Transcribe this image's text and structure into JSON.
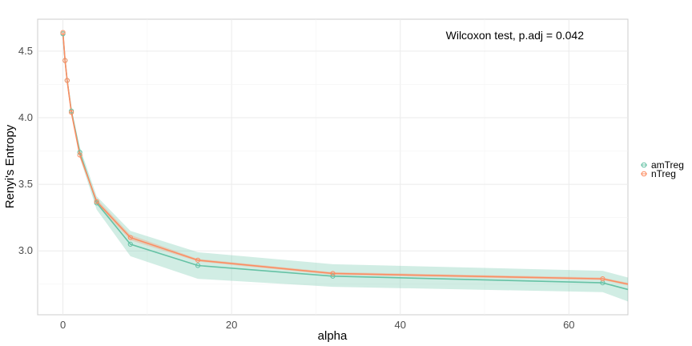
{
  "chart_data": {
    "type": "line",
    "xlabel": "alpha",
    "ylabel": "Renyi's Entropy",
    "annotation": "Wilcoxon test, p.adj = 0.042",
    "xlim": [
      -3,
      67
    ],
    "ylim": [
      2.52,
      4.74
    ],
    "x_ticks": [
      0,
      20,
      40,
      60
    ],
    "y_ticks": [
      3.0,
      3.5,
      4.0,
      4.5
    ],
    "x_tick_labels": [
      "0",
      "20",
      "40",
      "60"
    ],
    "y_tick_labels": [
      "3.0",
      "3.5",
      "4.0",
      "4.5"
    ],
    "grid": true,
    "legend_position": "right",
    "series": [
      {
        "name": "amTreg",
        "color": "#66c2a5",
        "x": [
          0,
          0.25,
          0.5,
          1,
          2,
          4,
          8,
          16,
          32,
          64,
          67
        ],
        "y": [
          4.63,
          4.43,
          4.28,
          4.05,
          3.74,
          3.36,
          3.05,
          2.89,
          2.81,
          2.76,
          2.71
        ],
        "lower": [
          4.62,
          4.42,
          4.27,
          4.03,
          3.7,
          3.31,
          2.96,
          2.79,
          2.73,
          2.69,
          2.62
        ],
        "upper": [
          4.65,
          4.45,
          4.3,
          4.07,
          3.78,
          3.41,
          3.15,
          2.99,
          2.9,
          2.85,
          2.8
        ]
      },
      {
        "name": "nTreg",
        "color": "#fc8d62",
        "x": [
          0,
          0.25,
          0.5,
          1,
          2,
          4,
          8,
          16,
          32,
          64,
          67
        ],
        "y": [
          4.64,
          4.43,
          4.28,
          4.04,
          3.72,
          3.37,
          3.1,
          2.93,
          2.83,
          2.79,
          2.75
        ],
        "lower": [
          4.63,
          4.42,
          4.27,
          4.03,
          3.71,
          3.35,
          3.08,
          2.92,
          2.82,
          2.78,
          2.74
        ],
        "upper": [
          4.65,
          4.44,
          4.29,
          4.05,
          3.73,
          3.39,
          3.12,
          2.94,
          2.84,
          2.8,
          2.76
        ]
      }
    ]
  }
}
